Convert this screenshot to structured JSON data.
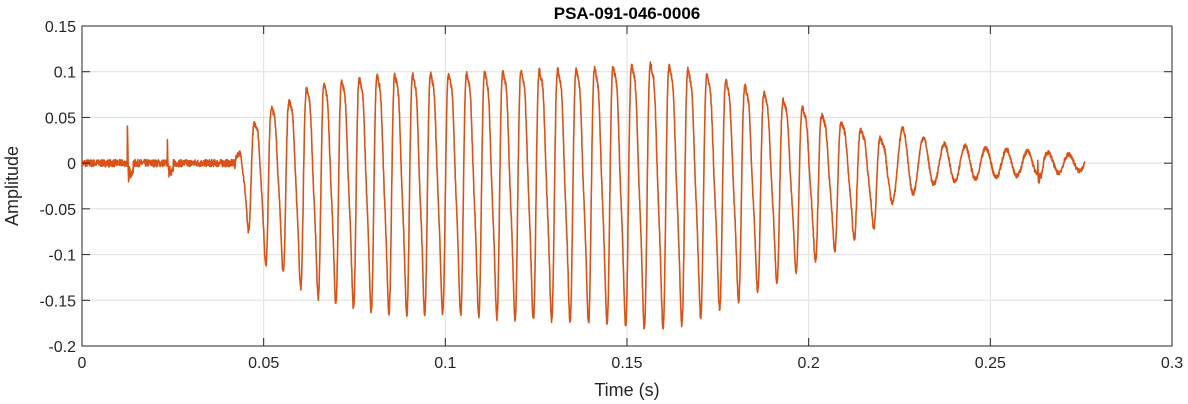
{
  "chart_data": {
    "type": "line",
    "title": "PSA-091-046-0006",
    "xlabel": "Time (s)",
    "ylabel": "Amplitude",
    "xlim": [
      0,
      0.3
    ],
    "ylim": [
      -0.2,
      0.15
    ],
    "xticks": [
      "0",
      "0.05",
      "0.1",
      "0.15",
      "0.2",
      "0.25",
      "0.3"
    ],
    "yticks": [
      "0.15",
      "0.1",
      "0.05",
      "0",
      "-0.05",
      "-0.1",
      "-0.15",
      "-0.2"
    ],
    "grid": true,
    "line_color": "#d95319",
    "series": [
      {
        "description": "speech waveform (estimated)",
        "duration": 0.276,
        "segments": [
          {
            "t0": 0.0,
            "t1": 0.042,
            "kind": "noise",
            "level": 0.004
          },
          {
            "t0": 0.042,
            "t1": 0.222,
            "kind": "voiced",
            "f0_start": 210,
            "f0_end": 185
          },
          {
            "t0": 0.222,
            "t1": 0.276,
            "kind": "decay",
            "f0": 175
          }
        ],
        "envelope": [
          [
            0.042,
            0.02
          ],
          [
            0.046,
            0.06
          ],
          [
            0.05,
            0.09
          ],
          [
            0.056,
            0.1
          ],
          [
            0.062,
            0.12
          ],
          [
            0.07,
            0.13
          ],
          [
            0.08,
            0.138
          ],
          [
            0.09,
            0.14
          ],
          [
            0.1,
            0.14
          ],
          [
            0.12,
            0.145
          ],
          [
            0.14,
            0.148
          ],
          [
            0.158,
            0.155
          ],
          [
            0.165,
            0.15
          ],
          [
            0.175,
            0.135
          ],
          [
            0.185,
            0.12
          ],
          [
            0.195,
            0.1
          ],
          [
            0.205,
            0.08
          ],
          [
            0.215,
            0.06
          ],
          [
            0.222,
            0.045
          ],
          [
            0.235,
            0.022
          ],
          [
            0.25,
            0.016
          ],
          [
            0.265,
            0.012
          ],
          [
            0.276,
            0.008
          ]
        ],
        "transients": [
          {
            "t": 0.0125,
            "peak": 0.038,
            "trough": -0.025
          },
          {
            "t": 0.0235,
            "peak": 0.022,
            "trough": -0.02
          },
          {
            "t": 0.263,
            "peak": 0.02,
            "trough": -0.015
          }
        ]
      }
    ]
  }
}
